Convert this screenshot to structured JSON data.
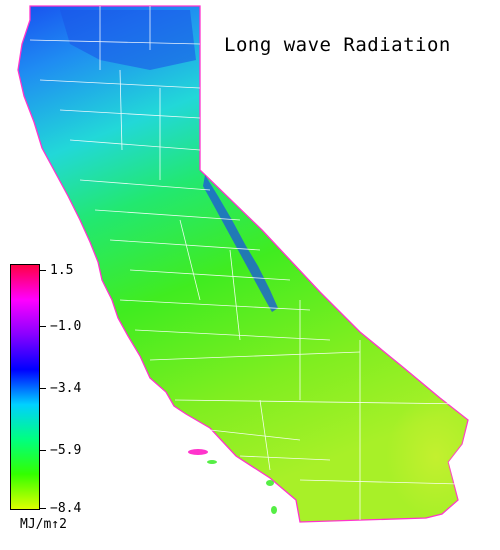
{
  "title": "Long wave Radiation",
  "legend": {
    "ticks": [
      "1.5",
      "−1.0",
      "−3.4",
      "−5.9",
      "−8.4"
    ],
    "units": "MJ/m↑2",
    "colors": [
      "#ff0044",
      "#ff00ff",
      "#8800ff",
      "#0000ff",
      "#00d0ff",
      "#00ff80",
      "#33ff00",
      "#ddff00"
    ]
  },
  "map_colors": {
    "north": "#1e6cff",
    "northwest": "#2aa8f0",
    "central_north": "#2cd6c0",
    "central": "#2ee860",
    "south": "#66ee22",
    "desert": "#b8f030",
    "sierra": "#1a5ad8",
    "boundaries": "#ffffff",
    "coast_fringe": "#ff33cc"
  }
}
